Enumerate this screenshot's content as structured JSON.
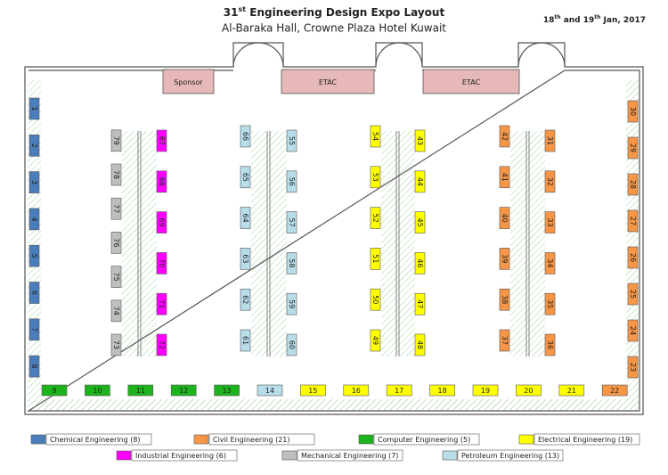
{
  "header": {
    "title": {
      "number": "31",
      "sup": "st",
      "rest": " Engineering Design Expo Layout"
    },
    "subtitle": "Al-Baraka Hall, Crowne Plaza Hotel Kuwait",
    "date": {
      "day1": "18",
      "sup1": "th",
      "mid": " and 19",
      "sup2": "th",
      "rest": " Jan, 2017"
    }
  },
  "rooms": [
    {
      "label": "Sponsor"
    },
    {
      "label": "ETAC"
    },
    {
      "label": "ETAC"
    }
  ],
  "legend": [
    {
      "label": "Chemical Engineering (8)",
      "color": "#4a7ebb"
    },
    {
      "label": "Civil Engineering (21)",
      "color": "#f79646"
    },
    {
      "label": "Computer Engineering (5)",
      "color": "#1db31d"
    },
    {
      "label": "Electrical Engineering (19)",
      "color": "#ffff00"
    },
    {
      "label": "Industrial Engineering (6)",
      "color": "#ff00ff"
    },
    {
      "label": "Mechanical Engineering (7)",
      "color": "#bfbfbf"
    },
    {
      "label": "Petroleum Engineering (13)",
      "color": "#b7dde8"
    }
  ],
  "booths": [
    {
      "label": "1",
      "category": 0
    },
    {
      "label": "2",
      "category": 0
    },
    {
      "label": "3",
      "category": 0
    },
    {
      "label": "4",
      "category": 0
    },
    {
      "label": "5",
      "category": 0
    },
    {
      "label": "6",
      "category": 0
    },
    {
      "label": "7",
      "category": 0
    },
    {
      "label": "8",
      "category": 0
    },
    {
      "label": "9",
      "category": 2
    },
    {
      "label": "10",
      "category": 2
    },
    {
      "label": "11",
      "category": 2
    },
    {
      "label": "12",
      "category": 2
    },
    {
      "label": "13",
      "category": 2
    },
    {
      "label": "14",
      "category": 6
    },
    {
      "label": "15",
      "category": 3
    },
    {
      "label": "16",
      "category": 3
    },
    {
      "label": "17",
      "category": 3
    },
    {
      "label": "18",
      "category": 3
    },
    {
      "label": "19",
      "category": 3
    },
    {
      "label": "20",
      "category": 3
    },
    {
      "label": "21",
      "category": 3
    },
    {
      "label": "22",
      "category": 1
    },
    {
      "label": "23",
      "category": 1
    },
    {
      "label": "24",
      "category": 1
    },
    {
      "label": "25",
      "category": 1
    },
    {
      "label": "26",
      "category": 1
    },
    {
      "label": "27",
      "category": 1
    },
    {
      "label": "28",
      "category": 1
    },
    {
      "label": "29",
      "category": 1
    },
    {
      "label": "30",
      "category": 1
    },
    {
      "label": "31",
      "category": 1
    },
    {
      "label": "32",
      "category": 1
    },
    {
      "label": "33",
      "category": 1
    },
    {
      "label": "34",
      "category": 1
    },
    {
      "label": "35",
      "category": 1
    },
    {
      "label": "36",
      "category": 1
    },
    {
      "label": "37",
      "category": 1
    },
    {
      "label": "38",
      "category": 1
    },
    {
      "label": "39",
      "category": 1
    },
    {
      "label": "40",
      "category": 1
    },
    {
      "label": "41",
      "category": 1
    },
    {
      "label": "42",
      "category": 1
    },
    {
      "label": "43",
      "category": 3
    },
    {
      "label": "44",
      "category": 3
    },
    {
      "label": "45",
      "category": 3
    },
    {
      "label": "46",
      "category": 3
    },
    {
      "label": "47",
      "category": 3
    },
    {
      "label": "48",
      "category": 3
    },
    {
      "label": "49",
      "category": 3
    },
    {
      "label": "50",
      "category": 3
    },
    {
      "label": "51",
      "category": 3
    },
    {
      "label": "52",
      "category": 3
    },
    {
      "label": "53",
      "category": 3
    },
    {
      "label": "54",
      "category": 3
    },
    {
      "label": "55",
      "category": 6
    },
    {
      "label": "56",
      "category": 6
    },
    {
      "label": "57",
      "category": 6
    },
    {
      "label": "58",
      "category": 6
    },
    {
      "label": "59",
      "category": 6
    },
    {
      "label": "60",
      "category": 6
    },
    {
      "label": "61",
      "category": 6
    },
    {
      "label": "62",
      "category": 6
    },
    {
      "label": "63",
      "category": 6
    },
    {
      "label": "64",
      "category": 6
    },
    {
      "label": "65",
      "category": 6
    },
    {
      "label": "66",
      "category": 6
    },
    {
      "label": "67",
      "category": 4
    },
    {
      "label": "68",
      "category": 4
    },
    {
      "label": "69",
      "category": 4
    },
    {
      "label": "70",
      "category": 4
    },
    {
      "label": "71",
      "category": 4
    },
    {
      "label": "72",
      "category": 4
    },
    {
      "label": "73",
      "category": 5
    },
    {
      "label": "74",
      "category": 5
    },
    {
      "label": "75",
      "category": 5
    },
    {
      "label": "76",
      "category": 5
    },
    {
      "label": "77",
      "category": 5
    },
    {
      "label": "78",
      "category": 5
    },
    {
      "label": "79",
      "category": 5
    }
  ]
}
